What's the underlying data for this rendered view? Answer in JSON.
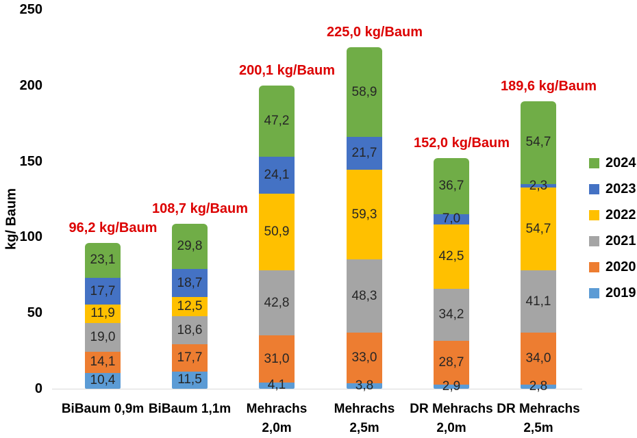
{
  "chart_data": {
    "type": "bar",
    "stacked": true,
    "title": "",
    "y_axis": {
      "label": "kg/ Baum",
      "range": [
        0,
        250
      ],
      "ticks": [
        {
          "value": 0,
          "label": "0"
        },
        {
          "value": 50,
          "label": "50"
        },
        {
          "value": 100,
          "label": "100"
        },
        {
          "value": 150,
          "label": "150"
        },
        {
          "value": 200,
          "label": "200"
        },
        {
          "value": 250,
          "label": "250"
        }
      ]
    },
    "grid": false,
    "categories": [
      "BiBaum 0,9m",
      "BiBaum 1,1m",
      "Mehrachs 2,0m",
      "Mehrachs 2,5m",
      "DR Mehrachs 2,0m",
      "DR Mehrachs 2,5m"
    ],
    "category_lines": [
      [
        "BiBaum 0,9m"
      ],
      [
        "BiBaum 1,1m"
      ],
      [
        "Mehrachs",
        "2,0m"
      ],
      [
        "Mehrachs",
        "2,5m"
      ],
      [
        "DR Mehrachs",
        "2,0m"
      ],
      [
        "DR Mehrachs",
        "2,5m"
      ]
    ],
    "series": [
      {
        "name": "2019",
        "color": "#5B9BD5",
        "values": [
          10.4,
          11.5,
          4.1,
          3.8,
          2.9,
          2.8
        ],
        "labels": [
          "10,4",
          "11,5",
          "4,1",
          "3,8",
          "2,9",
          "2,8"
        ]
      },
      {
        "name": "2020",
        "color": "#ED7D31",
        "values": [
          14.1,
          17.7,
          31.0,
          33.0,
          28.7,
          34.0
        ],
        "labels": [
          "14,1",
          "17,7",
          "31,0",
          "33,0",
          "28,7",
          "34,0"
        ]
      },
      {
        "name": "2021",
        "color": "#A5A5A5",
        "values": [
          19.0,
          18.6,
          42.8,
          48.3,
          34.2,
          41.1
        ],
        "labels": [
          "19,0",
          "18,6",
          "42,8",
          "48,3",
          "34,2",
          "41,1"
        ]
      },
      {
        "name": "2022",
        "color": "#FFC000",
        "values": [
          11.9,
          12.5,
          50.9,
          59.3,
          42.5,
          54.7
        ],
        "labels": [
          "11,9",
          "12,5",
          "50,9",
          "59,3",
          "42,5",
          "54,7"
        ]
      },
      {
        "name": "2023",
        "color": "#4472C4",
        "values": [
          17.7,
          18.7,
          24.1,
          21.7,
          7.0,
          2.3
        ],
        "labels": [
          "17,7",
          "18,7",
          "24,1",
          "21,7",
          "7,0",
          "2,3"
        ]
      },
      {
        "name": "2024",
        "color": "#70AD47",
        "values": [
          23.1,
          29.8,
          47.2,
          58.9,
          36.7,
          54.7
        ],
        "labels": [
          "23,1",
          "29,8",
          "47,2",
          "58,9",
          "36,7",
          "54,7"
        ]
      }
    ],
    "totals": {
      "values": [
        96.2,
        108.7,
        200.1,
        225.0,
        152.0,
        189.6
      ],
      "labels": [
        "96,2 kg/Baum",
        "108,7 kg/Baum",
        "200,1 kg/Baum",
        "225,0 kg/Baum",
        "152,0 kg/Baum",
        "189,6 kg/Baum"
      ]
    },
    "legend": {
      "position": "right",
      "entries": [
        "2024",
        "2023",
        "2022",
        "2021",
        "2020",
        "2019"
      ]
    },
    "colors": {
      "total_label": "#DC0000",
      "segment_label": "#262626",
      "axis_label": "#000000",
      "baseline": "#D9D9D9",
      "background": "#FFFFFF"
    }
  }
}
